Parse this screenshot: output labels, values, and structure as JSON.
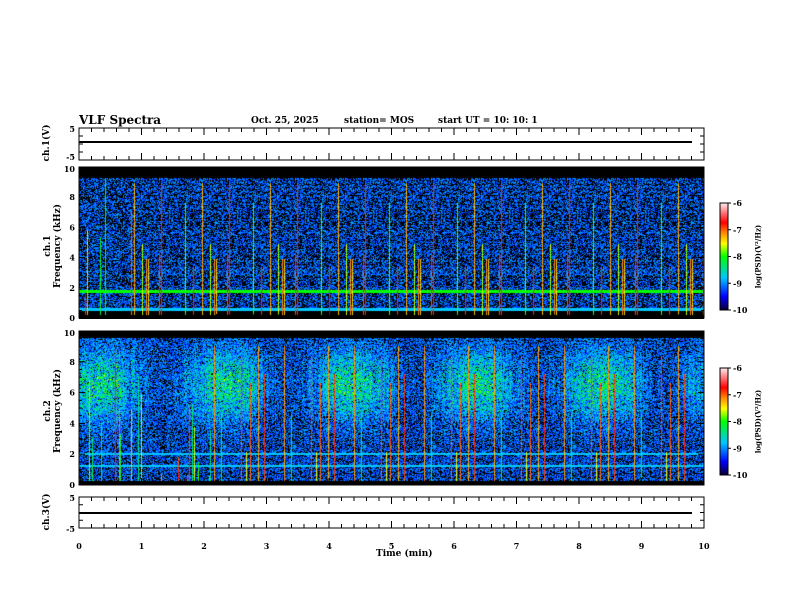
{
  "header": {
    "title": "VLF Spectra",
    "date": "Oct. 25, 2025",
    "station": "station= MOS",
    "start": "start  UT =   10: 10: 1"
  },
  "chart_data": [
    {
      "type": "line",
      "name": "ch1-waveform",
      "ylabel": "ch.1(V)",
      "ylim": [
        -5,
        5
      ],
      "yticks": [
        "5",
        "-5"
      ],
      "x_range_min": [
        0,
        10
      ],
      "level_V": 0
    },
    {
      "type": "heatmap",
      "name": "ch1-spectrogram",
      "ylabel": "ch.1\nFrequency (kHz)",
      "ylabel_line1": "ch.1",
      "ylabel_line2": "Frequency (kHz)",
      "ylim": [
        0,
        10
      ],
      "yticks": [
        "0",
        "2",
        "4",
        "6",
        "8",
        "10"
      ],
      "colorbar": {
        "label": "log(PSD)(V²/Hz)",
        "range": [
          -10,
          -6
        ],
        "ticks": [
          "-6",
          "-7",
          "-8",
          "-9",
          "-10"
        ]
      },
      "horizontal_lines_kHz": [
        1.8,
        0.6
      ]
    },
    {
      "type": "heatmap",
      "name": "ch2-spectrogram",
      "ylabel_line1": "ch.2",
      "ylabel_line2": "Frequency (kHz)",
      "ylim": [
        0,
        10
      ],
      "yticks": [
        "0",
        "2",
        "4",
        "6",
        "8",
        "10"
      ],
      "colorbar": {
        "label": "log(PSD)(V²/Hz)",
        "range": [
          -10,
          -6
        ],
        "ticks": [
          "-6",
          "-7",
          "-8",
          "-9",
          "-10"
        ]
      },
      "horizontal_lines_kHz": [
        2.0,
        1.2
      ]
    },
    {
      "type": "line",
      "name": "ch3-waveform",
      "ylabel": "ch.3(V)",
      "ylim": [
        -5,
        5
      ],
      "yticks": [
        "5",
        "-5"
      ],
      "level_V": 0
    },
    {
      "type": "axis",
      "xlabel": "Time  (min)",
      "xlim": [
        0,
        10
      ],
      "xticks": [
        "0",
        "1",
        "2",
        "3",
        "4",
        "5",
        "6",
        "7",
        "8",
        "9",
        "10"
      ]
    }
  ],
  "colors": {
    "background": "#000000",
    "axis": "#000000"
  }
}
